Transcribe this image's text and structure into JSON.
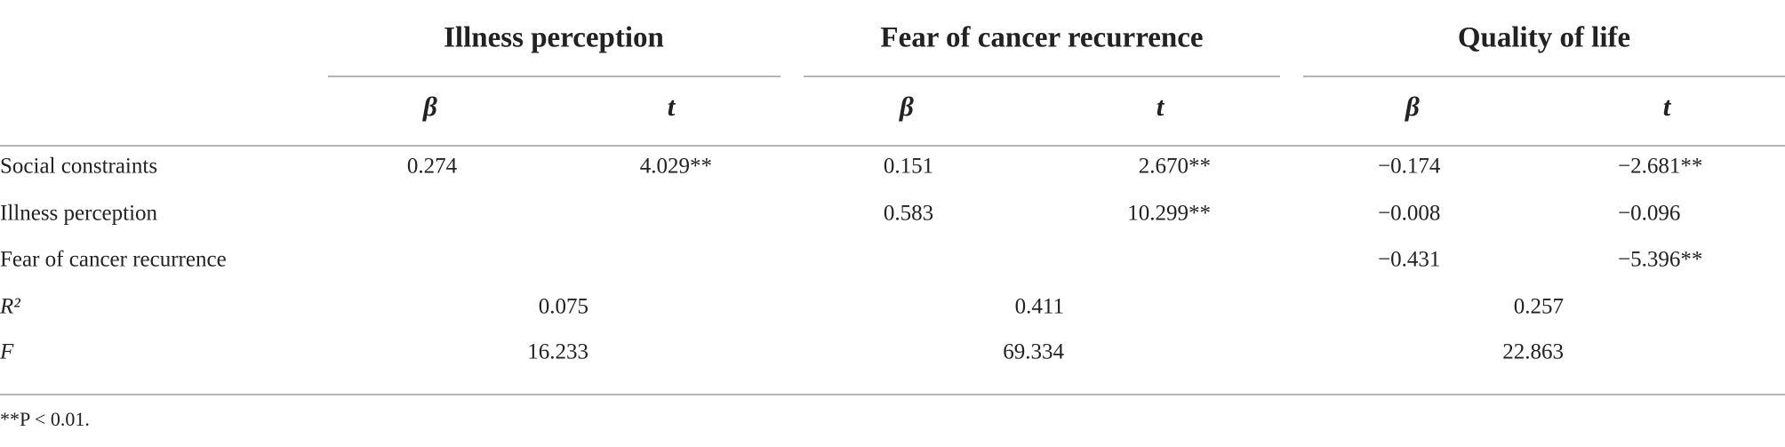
{
  "table": {
    "groups": [
      "Illness perception",
      "Fear of cancer recurrence",
      "Quality of life"
    ],
    "subheaders": [
      "β",
      "t",
      "β",
      "t",
      "β",
      "t"
    ],
    "rows": [
      {
        "label": "Social constraints",
        "values": [
          "0.274",
          "4.029**",
          "0.151",
          "2.670**",
          "−0.174",
          "−2.681**"
        ]
      },
      {
        "label": "Illness perception",
        "values": [
          null,
          null,
          "0.583",
          "10.299**",
          "−0.008",
          "−0.096"
        ]
      },
      {
        "label": "Fear of cancer recurrence",
        "values": [
          null,
          null,
          null,
          null,
          "−0.431",
          "−5.396**"
        ]
      },
      {
        "label": "R²",
        "values": [
          "0.075",
          "0.411",
          "0.257"
        ]
      },
      {
        "label": "F",
        "values": [
          "16.233",
          "69.334",
          "22.863"
        ]
      }
    ],
    "footnote": "**P < 0.01."
  }
}
